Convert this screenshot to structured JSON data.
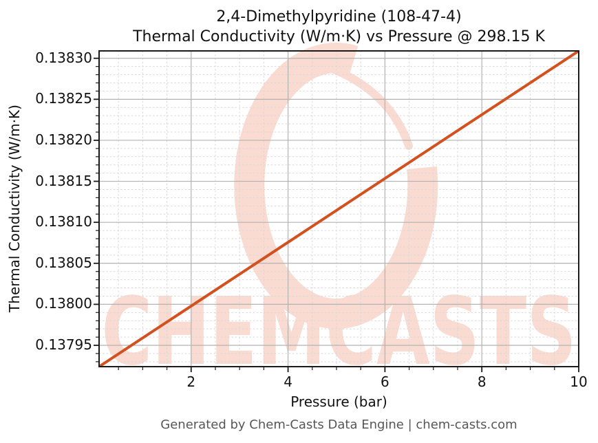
{
  "title": {
    "line1": "2,4-Dimethylpyridine (108-47-4)",
    "line2": "Thermal Conductivity (W/m·K) vs Pressure @ 298.15 K"
  },
  "footer": {
    "text": "Generated by Chem-Casts Data Engine | chem-casts.com"
  },
  "watermark": {
    "text": "CHEMCASTS",
    "color": "#f9dbd2"
  },
  "chart_data": {
    "type": "line",
    "title": "2,4-Dimethylpyridine (108-47-4)\nThermal Conductivity (W/m·K) vs Pressure @ 298.15 K",
    "xlabel": "Pressure (bar)",
    "ylabel": "Thermal Conductivity (W/m·K)",
    "series": [
      {
        "name": "Thermal Conductivity",
        "x": [
          0.1,
          10.0
        ],
        "y": [
          0.137924,
          0.138309
        ]
      }
    ],
    "xlim": [
      0.1,
      10.0
    ],
    "ylim": [
      0.137924,
      0.138309
    ],
    "xticks": [
      2,
      4,
      6,
      8,
      10
    ],
    "xtick_labels": [
      "2",
      "4",
      "6",
      "8",
      "10"
    ],
    "yticks": [
      0.13795,
      0.138,
      0.13805,
      0.1381,
      0.13815,
      0.1382,
      0.13825,
      0.1383
    ],
    "ytick_labels": [
      "0.13795",
      "0.13800",
      "0.13805",
      "0.13810",
      "0.13815",
      "0.13820",
      "0.13825",
      "0.13830"
    ],
    "xminor_step": 0.5,
    "yminor_step": 1e-05,
    "grid": true,
    "legend": "none",
    "colors": {
      "line": "#d2511e",
      "grid_major": "#b2b2b2",
      "grid_minor": "#d9d9d9",
      "spine": "#1a1a1a",
      "footer_text": "#565656",
      "watermark": "#f9dbd2"
    }
  }
}
